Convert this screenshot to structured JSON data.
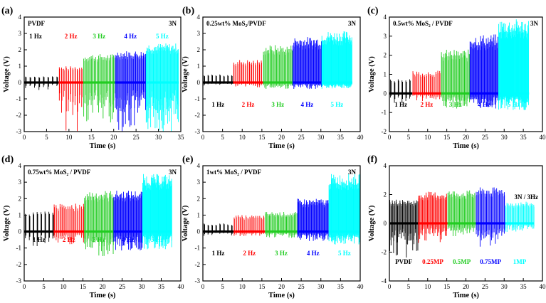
{
  "chart_data": [
    {
      "panel_label": "(a)",
      "title": "PVDF",
      "force": "3N",
      "type": "line",
      "xlabel": "Time (s)",
      "ylabel": "Voltage (V)",
      "xlim": [
        0,
        35
      ],
      "ylim": [
        -3,
        4
      ],
      "xticks": [
        "0",
        "5",
        "10",
        "15",
        "20",
        "25",
        "30",
        "35"
      ],
      "yticks": [
        "-3",
        "-2",
        "-1",
        "0",
        "1",
        "2",
        "3",
        "4"
      ],
      "series": [
        {
          "name": "1 Hz",
          "color": "#000000",
          "t_start": 0,
          "t_end": 7.7,
          "v_max": 0.4,
          "v_min": -0.5
        },
        {
          "name": "2 Hz",
          "color": "#ff0000",
          "t_start": 7.7,
          "t_end": 13.2,
          "v_max": 1.0,
          "v_min": -3.0
        },
        {
          "name": "3 Hz",
          "color": "#22cc22",
          "t_start": 13.2,
          "t_end": 20.3,
          "v_max": 1.75,
          "v_min": -2.5
        },
        {
          "name": "4 Hz",
          "color": "#0000ff",
          "t_start": 20.3,
          "t_end": 27.2,
          "v_max": 1.95,
          "v_min": -3.0
        },
        {
          "name": "5 Hz",
          "color": "#00ffff",
          "t_start": 27.2,
          "t_end": 34.5,
          "v_max": 2.4,
          "v_min": -3.0
        }
      ]
    },
    {
      "panel_label": "(b)",
      "title": "0.25wt% MoS₂/PVDF",
      "force": "3N",
      "type": "line",
      "xlabel": "Time (s)",
      "ylabel": "Voltage (V)",
      "xlim": [
        0,
        40
      ],
      "ylim": [
        -3,
        4
      ],
      "xticks": [
        "0",
        "5",
        "10",
        "15",
        "20",
        "25",
        "30",
        "35",
        "40"
      ],
      "yticks": [
        "-3",
        "-2",
        "-1",
        "0",
        "1",
        "2",
        "3",
        "4"
      ],
      "series": [
        {
          "name": "1 Hz",
          "color": "#000000",
          "t_start": 0,
          "t_end": 7.7,
          "v_max": 0.5,
          "v_min": -0.2
        },
        {
          "name": "2 Hz",
          "color": "#ff0000",
          "t_start": 7.7,
          "t_end": 15.3,
          "v_max": 1.4,
          "v_min": -0.3
        },
        {
          "name": "3 Hz",
          "color": "#22cc22",
          "t_start": 15.3,
          "t_end": 22.8,
          "v_max": 2.3,
          "v_min": -0.4
        },
        {
          "name": "4 Hz",
          "color": "#0000ff",
          "t_start": 22.8,
          "t_end": 30.2,
          "v_max": 2.8,
          "v_min": -0.4
        },
        {
          "name": "5 Hz",
          "color": "#00ffff",
          "t_start": 30.2,
          "t_end": 38,
          "v_max": 3.15,
          "v_min": -0.4
        }
      ]
    },
    {
      "panel_label": "(c)",
      "title": "0.5wt% MoS₂ / PVDF",
      "force": "3N",
      "type": "line",
      "xlabel": "Time (s)",
      "ylabel": "Voltage (V)",
      "xlim": [
        0,
        40
      ],
      "ylim": [
        -2,
        4
      ],
      "xticks": [
        "0",
        "5",
        "10",
        "15",
        "20",
        "25",
        "30",
        "35",
        "40"
      ],
      "yticks": [
        "-2",
        "-1",
        "0",
        "1",
        "2",
        "3",
        "4"
      ],
      "series": [
        {
          "name": "1 Hz",
          "color": "#000000",
          "t_start": 0,
          "t_end": 6,
          "v_max": 0.8,
          "v_min": -0.5
        },
        {
          "name": "2 Hz",
          "color": "#ff0000",
          "t_start": 6,
          "t_end": 13.5,
          "v_max": 1.2,
          "v_min": -0.4
        },
        {
          "name": "3 Hz",
          "color": "#22cc22",
          "t_start": 13.5,
          "t_end": 21,
          "v_max": 2.3,
          "v_min": -0.8
        },
        {
          "name": "4 Hz",
          "color": "#0000ff",
          "t_start": 21,
          "t_end": 28.5,
          "v_max": 3.1,
          "v_min": -0.8
        },
        {
          "name": "5 Hz",
          "color": "#00ffff",
          "t_start": 28.5,
          "t_end": 36.5,
          "v_max": 3.9,
          "v_min": -0.9
        }
      ]
    },
    {
      "panel_label": "(d)",
      "title": "0.75wt% MoS₂ / PVDF",
      "force": "3N",
      "type": "line",
      "xlabel": "Time (s)",
      "ylabel": "Voltage (V)",
      "xlim": [
        0,
        40
      ],
      "ylim": [
        -3,
        4
      ],
      "xticks": [
        "0",
        "5",
        "10",
        "15",
        "20",
        "25",
        "30",
        "35",
        "40"
      ],
      "yticks": [
        "-3",
        "-2",
        "-1",
        "0",
        "1",
        "2",
        "3",
        "4"
      ],
      "series": [
        {
          "name": "1 Hz",
          "color": "#000000",
          "t_start": 0,
          "t_end": 7.5,
          "v_max": 1.25,
          "v_min": -1.1
        },
        {
          "name": "2 Hz",
          "color": "#ff0000",
          "t_start": 7.5,
          "t_end": 15.3,
          "v_max": 1.7,
          "v_min": -0.8
        },
        {
          "name": "3 Hz",
          "color": "#22cc22",
          "t_start": 15.3,
          "t_end": 22.8,
          "v_max": 2.5,
          "v_min": -1.5
        },
        {
          "name": "4 Hz",
          "color": "#0000ff",
          "t_start": 22.8,
          "t_end": 30.2,
          "v_max": 2.5,
          "v_min": -1.2
        },
        {
          "name": "5 Hz",
          "color": "#00ffff",
          "t_start": 30.2,
          "t_end": 37.7,
          "v_max": 3.5,
          "v_min": -1.1
        }
      ]
    },
    {
      "panel_label": "(e)",
      "title": "1wt% MoS₂ / PVDF",
      "force": "3N",
      "type": "line",
      "xlabel": "Time (s)",
      "ylabel": "Voltage (V)",
      "xlim": [
        0,
        40
      ],
      "ylim": [
        -3,
        4
      ],
      "xticks": [
        "0",
        "5",
        "10",
        "15",
        "20",
        "25",
        "30",
        "35",
        "40"
      ],
      "yticks": [
        "-3",
        "-2",
        "-1",
        "0",
        "1",
        "2",
        "3",
        "4"
      ],
      "series": [
        {
          "name": "1 Hz",
          "color": "#000000",
          "t_start": 0,
          "t_end": 7.8,
          "v_max": 0.5,
          "v_min": -0.3
        },
        {
          "name": "2 Hz",
          "color": "#ff0000",
          "t_start": 7.8,
          "t_end": 15.8,
          "v_max": 1.0,
          "v_min": -0.3
        },
        {
          "name": "3 Hz",
          "color": "#22cc22",
          "t_start": 15.8,
          "t_end": 24,
          "v_max": 1.2,
          "v_min": -0.4
        },
        {
          "name": "4 Hz",
          "color": "#0000ff",
          "t_start": 24,
          "t_end": 32,
          "v_max": 2.0,
          "v_min": -0.6
        },
        {
          "name": "5 Hz",
          "color": "#00ffff",
          "t_start": 32,
          "t_end": 40,
          "v_max": 3.5,
          "v_min": -0.8
        }
      ]
    },
    {
      "panel_label": "(f)",
      "title": "3N / 3Hz",
      "force": "",
      "type": "line",
      "xlabel": "Time (s)",
      "ylabel": "Voltage (V)",
      "xlim": [
        0,
        40
      ],
      "ylim": [
        -4,
        4
      ],
      "xticks": [
        "0",
        "5",
        "10",
        "15",
        "20",
        "25",
        "30",
        "35",
        "40"
      ],
      "yticks": [
        "-4",
        "-2",
        "0",
        "2",
        "4"
      ],
      "series": [
        {
          "name": "PVDF",
          "color": "#000000",
          "t_start": 0,
          "t_end": 7.5,
          "v_max": 1.65,
          "v_min": -2.5
        },
        {
          "name": "0.25MP",
          "color": "#ff0000",
          "t_start": 7.5,
          "t_end": 15.2,
          "v_max": 2.2,
          "v_min": -1.4
        },
        {
          "name": "0.5MP",
          "color": "#22cc22",
          "t_start": 15.2,
          "t_end": 22.6,
          "v_max": 2.3,
          "v_min": -0.9
        },
        {
          "name": "0.75MP",
          "color": "#0000ff",
          "t_start": 22.6,
          "t_end": 30.3,
          "v_max": 2.5,
          "v_min": -1.7
        },
        {
          "name": "1MP",
          "color": "#00ffff",
          "t_start": 30.3,
          "t_end": 37.8,
          "v_max": 1.5,
          "v_min": -0.6
        }
      ]
    }
  ]
}
